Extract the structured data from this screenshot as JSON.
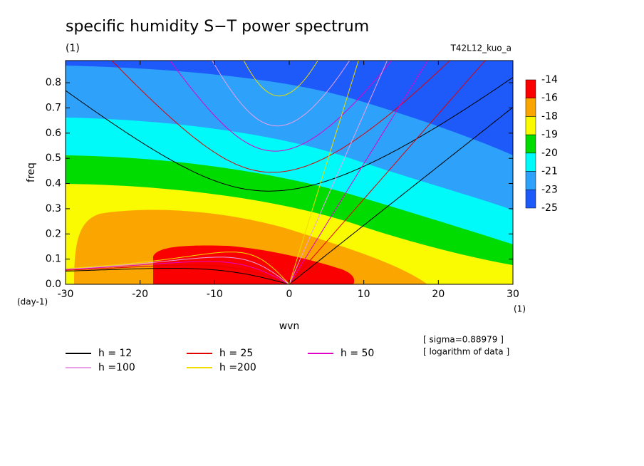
{
  "chart_data": {
    "type": "contour",
    "title": "specific humidity S−T power spectrum",
    "subtitle": "(1)",
    "run_label": "T42L12_kuo_a",
    "x_label": "wvn",
    "y_label": "freq",
    "y_unit": "(day-1)",
    "x_unit": "(1)",
    "notes": [
      "[ sigma=0.88979 ]",
      "[ logarithm of data ]"
    ],
    "xlim": [
      -30,
      30
    ],
    "xticks": [
      -30,
      -20,
      -10,
      0,
      10,
      20,
      30
    ],
    "ylim": [
      0,
      0.888
    ],
    "yticks": [
      {
        "value": 0,
        "label": "0.0"
      },
      0.1,
      0.2,
      0.3,
      0.4,
      0.5,
      0.6,
      0.7,
      0.8
    ],
    "levels": [
      -14,
      -16,
      -18,
      -19,
      -20,
      -21,
      -23,
      -25
    ],
    "level_colors": [
      "#fa0000",
      "#fba500",
      "#fafa00",
      "#00dc00",
      "#00fafa",
      "#2ea2fa",
      "#1e5afa"
    ],
    "series": [
      {
        "name": "h = 12",
        "h": 12,
        "color": "#000000"
      },
      {
        "name": "h = 25",
        "h": 25,
        "color": "#e00000"
      },
      {
        "name": "h = 50",
        "h": 50,
        "color": "#e000c8"
      },
      {
        "name": "h =100",
        "h": 100,
        "color": "#e8a0e8"
      },
      {
        "name": "h =200",
        "h": 200,
        "color": "#f0dc00"
      }
    ]
  }
}
